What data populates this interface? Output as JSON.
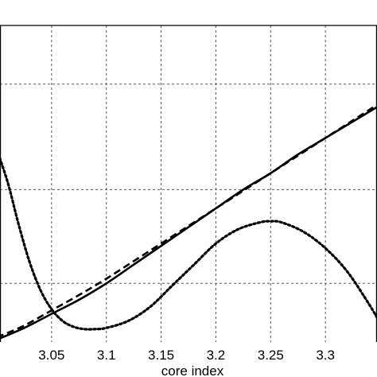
{
  "chart_data": {
    "type": "line",
    "xlabel": "core index",
    "ylabel": "",
    "xlim": [
      3.0,
      3.35
    ],
    "ylim": [
      -0.1,
      1.25
    ],
    "x_ticks": [
      {
        "value": 3.05,
        "label": "3.05"
      },
      {
        "value": 3.1,
        "label": "3.1"
      },
      {
        "value": 3.15,
        "label": "3.15"
      },
      {
        "value": 3.2,
        "label": "3.2"
      },
      {
        "value": 3.25,
        "label": "3.25"
      },
      {
        "value": 3.3,
        "label": "3.3"
      }
    ],
    "y_gridlines": [
      0.15,
      0.55,
      1.0
    ],
    "grid": true,
    "legend": "none",
    "series": [
      {
        "style": "solid",
        "color": "#000000",
        "x": [
          3.0,
          3.025,
          3.05,
          3.075,
          3.1,
          3.125,
          3.15,
          3.175,
          3.2,
          3.225,
          3.25,
          3.275,
          3.3,
          3.325,
          3.35
        ],
        "y": [
          -0.09,
          -0.04,
          0.02,
          0.08,
          0.15,
          0.23,
          0.31,
          0.39,
          0.47,
          0.55,
          0.62,
          0.7,
          0.77,
          0.84,
          0.91
        ]
      },
      {
        "style": "dashed",
        "color": "#000000",
        "x": [
          3.0,
          3.025,
          3.05,
          3.075,
          3.1,
          3.125,
          3.15,
          3.175,
          3.2,
          3.225,
          3.25,
          3.275,
          3.3,
          3.325,
          3.35
        ],
        "y": [
          -0.08,
          -0.03,
          0.035,
          0.1,
          0.17,
          0.245,
          0.32,
          0.395,
          0.47,
          0.545,
          0.62,
          0.695,
          0.77,
          0.845,
          0.92
        ]
      },
      {
        "style": "dotted",
        "color": "#000000",
        "x": [
          3.0,
          3.01,
          3.02,
          3.03,
          3.04,
          3.05,
          3.06,
          3.07,
          3.08,
          3.09,
          3.1,
          3.12,
          3.14,
          3.16,
          3.18,
          3.2,
          3.22,
          3.24,
          3.25,
          3.26,
          3.28,
          3.3,
          3.32,
          3.34,
          3.35
        ],
        "y": [
          0.72,
          0.58,
          0.4,
          0.24,
          0.12,
          0.04,
          -0.01,
          -0.035,
          -0.045,
          -0.045,
          -0.04,
          -0.01,
          0.05,
          0.14,
          0.23,
          0.32,
          0.38,
          0.41,
          0.415,
          0.41,
          0.37,
          0.3,
          0.2,
          0.06,
          -0.02
        ]
      }
    ]
  }
}
